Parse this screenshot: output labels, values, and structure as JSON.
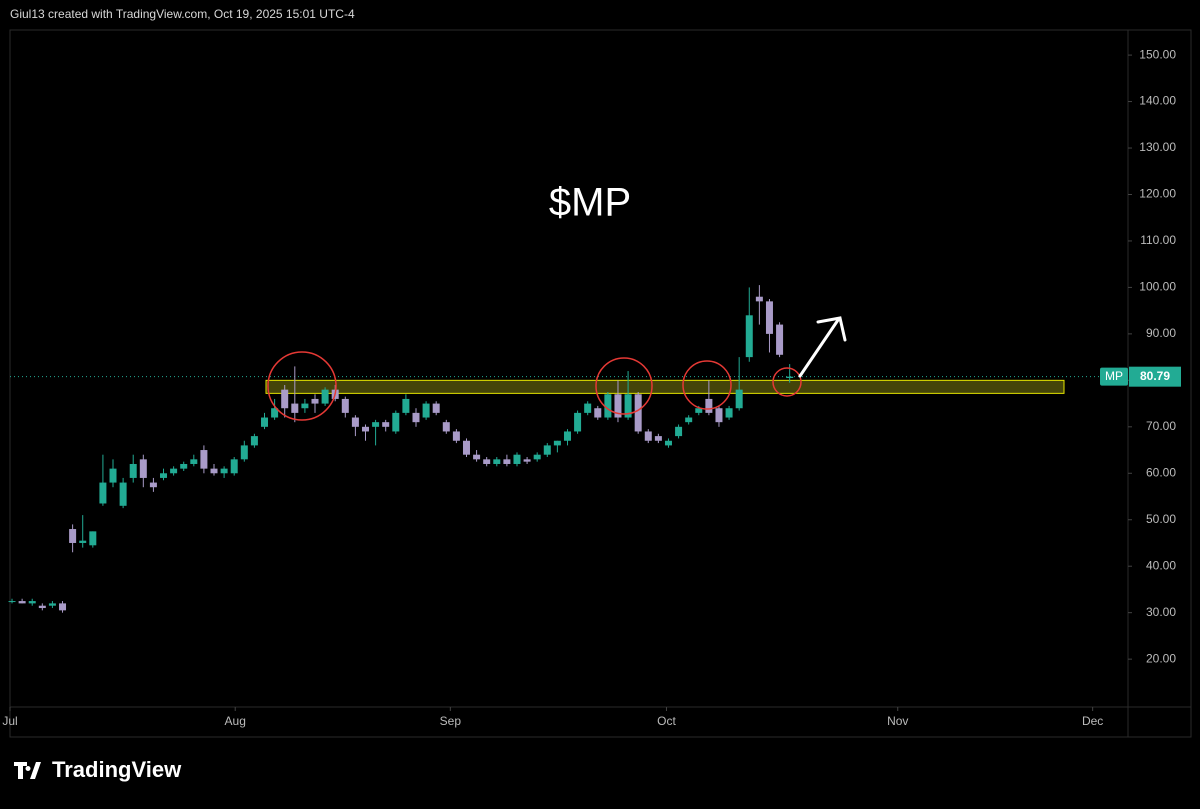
{
  "chart_data": {
    "type": "candlestick",
    "header": "Giul13 created with TradingView.com, Oct 19, 2025 15:01 UTC-4",
    "title": "$MP",
    "brand": "TradingView",
    "symbol": "MP",
    "last_price": 80.79,
    "up_color": "#22ab94",
    "down_color": "#a99bc8",
    "highlight_range": [
      77.2,
      80
    ],
    "ylim": [
      9.7,
      155.4
    ],
    "yticks": [
      {
        "value": 20,
        "label": "20.00"
      },
      {
        "value": 30,
        "label": "30.00"
      },
      {
        "value": 40,
        "label": "40.00"
      },
      {
        "value": 50,
        "label": "50.00"
      },
      {
        "value": 60,
        "label": "60.00"
      },
      {
        "value": 70,
        "label": "70.00"
      },
      {
        "value": 80,
        "label": "80.00"
      },
      {
        "value": 90,
        "label": "90.00"
      },
      {
        "value": 100,
        "label": "100.00"
      },
      {
        "value": 110,
        "label": "110.00"
      },
      {
        "value": 120,
        "label": "120.00"
      },
      {
        "value": 130,
        "label": "130.00"
      },
      {
        "value": 140,
        "label": "140.00"
      },
      {
        "value": 150,
        "label": "150.00"
      }
    ],
    "xlim": [
      -0.2,
      110.5
    ],
    "xticks": [
      {
        "value": -0.2,
        "label": "Jul"
      },
      {
        "value": 22.1,
        "label": "Aug"
      },
      {
        "value": 43.4,
        "label": "Sep"
      },
      {
        "value": 64.8,
        "label": "Oct"
      },
      {
        "value": 87.7,
        "label": "Nov"
      },
      {
        "value": 107,
        "label": "Dec"
      }
    ],
    "ohlc": [
      [
        32.5,
        33,
        32,
        32.5
      ],
      [
        32.5,
        33,
        32,
        32
      ],
      [
        32,
        33,
        31.5,
        32.5
      ],
      [
        31.5,
        32,
        30.5,
        31
      ],
      [
        31.5,
        32.5,
        31,
        32
      ],
      [
        32,
        32.5,
        30,
        30.5
      ],
      [
        48,
        49,
        43,
        45
      ],
      [
        45,
        51,
        44,
        45.5
      ],
      [
        44.5,
        47.5,
        44,
        47.5
      ],
      [
        53.5,
        64,
        53,
        58
      ],
      [
        58,
        63,
        57,
        61
      ],
      [
        53,
        59,
        52.5,
        58
      ],
      [
        59,
        64,
        58,
        62
      ],
      [
        63,
        64,
        57,
        59
      ],
      [
        58,
        59,
        56,
        57
      ],
      [
        59,
        61,
        58.5,
        60
      ],
      [
        60,
        61.5,
        59.5,
        61
      ],
      [
        61,
        62.5,
        60.5,
        62
      ],
      [
        62,
        64,
        61.5,
        63
      ],
      [
        65,
        66,
        60,
        61
      ],
      [
        61,
        62,
        59.5,
        60
      ],
      [
        60,
        61.5,
        59,
        61
      ],
      [
        60,
        63.5,
        59.5,
        63
      ],
      [
        63,
        67,
        62.5,
        66
      ],
      [
        66,
        68.5,
        65.5,
        68
      ],
      [
        70,
        73,
        69.5,
        72
      ],
      [
        72,
        76,
        71.5,
        74
      ],
      [
        78,
        79,
        72,
        74
      ],
      [
        75,
        83,
        71,
        73
      ],
      [
        74,
        76,
        73,
        75
      ],
      [
        76,
        77,
        73,
        75
      ],
      [
        75,
        78.5,
        74.5,
        78
      ],
      [
        78,
        79,
        75.5,
        76
      ],
      [
        76,
        76.5,
        72,
        73
      ],
      [
        72,
        72.5,
        68,
        70
      ],
      [
        70,
        70.5,
        67,
        69
      ],
      [
        70,
        71.5,
        66,
        71
      ],
      [
        71,
        71.5,
        69,
        70
      ],
      [
        69,
        73.5,
        68.5,
        73
      ],
      [
        73,
        77,
        72.5,
        76
      ],
      [
        73,
        74,
        70,
        71
      ],
      [
        72,
        75.5,
        71.5,
        75
      ],
      [
        75,
        75.5,
        72.5,
        73
      ],
      [
        71,
        71.5,
        68.5,
        69
      ],
      [
        69,
        69.5,
        66.5,
        67
      ],
      [
        67,
        67.5,
        63.5,
        64
      ],
      [
        64,
        65,
        62.5,
        63
      ],
      [
        63,
        63.5,
        61.5,
        62
      ],
      [
        62,
        63.5,
        61.5,
        63
      ],
      [
        63,
        64,
        61.5,
        62
      ],
      [
        62,
        64.5,
        61.5,
        64
      ],
      [
        63,
        63.5,
        62,
        62.5
      ],
      [
        63,
        64.5,
        62.5,
        64
      ],
      [
        64,
        66.5,
        63.5,
        66
      ],
      [
        66,
        67,
        64.5,
        67
      ],
      [
        67,
        69.5,
        66,
        69
      ],
      [
        69,
        73.5,
        68.5,
        73
      ],
      [
        73,
        75.5,
        72.5,
        75
      ],
      [
        74,
        74.5,
        71.5,
        72
      ],
      [
        72,
        77.5,
        71.5,
        77
      ],
      [
        77,
        80,
        71,
        72
      ],
      [
        72,
        82,
        71.5,
        77
      ],
      [
        77,
        77.5,
        68.5,
        69
      ],
      [
        69,
        69.5,
        66.5,
        67
      ],
      [
        68,
        68.5,
        66.5,
        67
      ],
      [
        66,
        67.5,
        65.5,
        67
      ],
      [
        68,
        70.5,
        67.5,
        70
      ],
      [
        71,
        72.5,
        70.5,
        72
      ],
      [
        73,
        74.5,
        72.5,
        74
      ],
      [
        76,
        80,
        72.5,
        73
      ],
      [
        74,
        74.5,
        70,
        71
      ],
      [
        72,
        74.5,
        71.5,
        74
      ],
      [
        74,
        85,
        73.5,
        78
      ],
      [
        85,
        100,
        84,
        94
      ],
      [
        98,
        100.5,
        92,
        97
      ],
      [
        97,
        97.5,
        86,
        90
      ],
      [
        92,
        92.5,
        85,
        85.5
      ],
      [
        80.5,
        83.5,
        79.5,
        80.79
      ]
    ]
  }
}
